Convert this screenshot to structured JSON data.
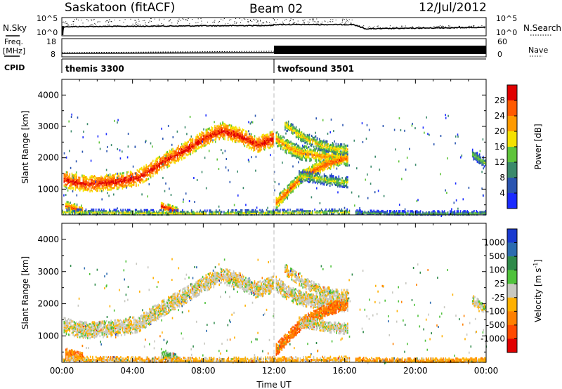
{
  "header": {
    "radar": "Saskatoon (fitACF)",
    "beam": "Beam 02",
    "date": "12/Jul/2012"
  },
  "strip_labels": {
    "nsky": "N.Sky",
    "nsky_top": "10^5",
    "nsky_bottom": "10^0",
    "nsearch": "N.Search",
    "nsearch_top": "10^5",
    "nsearch_bottom": "10^0",
    "freq": "Freq.",
    "freq_unit": "[MHz]",
    "freq_top": "18",
    "freq_bottom": "8",
    "nave": "Nave",
    "nave_top": "60",
    "nave_bottom": "0",
    "cpid": "CPID"
  },
  "cpid_modes": [
    {
      "name": "themis 3300",
      "start_hour": 0
    },
    {
      "name": "twofsound 3501",
      "start_hour": 12
    }
  ],
  "chart_data": [
    {
      "type": "heatmap",
      "name": "power",
      "xlabel": "",
      "ylabel": "Slant Range [km]",
      "xlim": [
        0,
        24
      ],
      "ylim": [
        180,
        4500
      ],
      "yticks": [
        1000,
        2000,
        3000,
        4000
      ],
      "colorbar_label": "Power [dB]",
      "colorbar_ticks": [
        "4",
        "8",
        "12",
        "16",
        "20",
        "24",
        "28"
      ],
      "colors": [
        "#1a2bff",
        "#2a55b0",
        "#3b8a6b",
        "#5fc43b",
        "#f5e100",
        "#ff9a00",
        "#ff5a00",
        "#e10000"
      ],
      "echo_bands": [
        {
          "t": [
            0.1,
            0.8,
            1.5,
            2.5,
            3.4,
            4.3,
            5.0,
            6.0,
            7.0,
            8.0,
            9.0,
            10.0,
            11.0,
            12.0
          ],
          "r": [
            1350,
            1250,
            1200,
            1250,
            1300,
            1400,
            1650,
            2000,
            2300,
            2650,
            2900,
            2750,
            2450,
            2650
          ],
          "w": 240,
          "level": 0.75
        },
        {
          "t": [
            12.1,
            12.8,
            13.5,
            14.5,
            15.5,
            16.2
          ],
          "r": [
            2650,
            2350,
            2200,
            2100,
            2050,
            2000
          ],
          "w": 220,
          "level": 0.5
        },
        {
          "t": [
            12.1,
            12.8,
            13.6,
            14.6,
            15.8,
            16.2
          ],
          "r": [
            600,
            1000,
            1450,
            1750,
            2000,
            2050
          ],
          "w": 180,
          "level": 0.62
        },
        {
          "t": [
            12.6,
            13.6,
            14.6,
            15.6,
            16.2
          ],
          "r": [
            3100,
            2700,
            2450,
            2300,
            2300
          ],
          "w": 160,
          "level": 0.4
        },
        {
          "t": [
            13.4,
            14.3,
            15.2,
            16.2
          ],
          "r": [
            1450,
            1400,
            1300,
            1250
          ],
          "w": 160,
          "level": 0.3
        },
        {
          "t": [
            5.6,
            6.1,
            6.6
          ],
          "r": [
            500,
            400,
            300
          ],
          "w": 120,
          "level": 0.7
        },
        {
          "t": [
            0.2,
            0.7,
            1.2
          ],
          "r": [
            500,
            420,
            350
          ],
          "w": 140,
          "level": 0.6
        },
        {
          "t": [
            0.0,
            4.0,
            8.0,
            12.0,
            16.3
          ],
          "r": [
            300,
            280,
            260,
            280,
            300
          ],
          "w": 90,
          "level": 0.28
        },
        {
          "t": [
            16.6,
            18.0,
            20.0,
            22.0,
            24.0
          ],
          "r": [
            290,
            270,
            260,
            260,
            270
          ],
          "w": 70,
          "level": 0.12
        },
        {
          "t": [
            23.2,
            23.6,
            24.0
          ],
          "r": [
            2150,
            2000,
            1850
          ],
          "w": 140,
          "level": 0.22
        }
      ]
    },
    {
      "type": "heatmap",
      "name": "velocity",
      "xlabel": "Time UT",
      "ylabel": "Slant Range [km]",
      "xlim": [
        0,
        24
      ],
      "ylim": [
        180,
        4500
      ],
      "xticks": [
        "00:00",
        "04:00",
        "08:00",
        "12:00",
        "16:00",
        "20:00",
        "00:00"
      ],
      "yticks": [
        1000,
        2000,
        3000,
        4000
      ],
      "colorbar_label": "Velocity [m s",
      "colorbar_label_sup": "-1",
      "colorbar_label_end": "]",
      "colorbar_ticks": [
        "1000",
        "500",
        "100",
        "25",
        "-25",
        "-100",
        "-500",
        "-1000"
      ],
      "colors": [
        "#1a3ad0",
        "#2c6cb0",
        "#2f8a4a",
        "#4fc23b",
        "#c8c8c0",
        "#ffb000",
        "#ff8000",
        "#ff4a00",
        "#e10000"
      ],
      "echo_bands": [
        {
          "t": [
            0.1,
            0.8,
            1.5,
            2.5,
            3.4,
            4.3,
            5.0,
            6.0,
            7.0,
            8.0,
            9.0,
            10.0,
            11.0,
            12.0
          ],
          "r": [
            1350,
            1250,
            1200,
            1250,
            1300,
            1400,
            1650,
            2000,
            2300,
            2650,
            2900,
            2750,
            2450,
            2650
          ],
          "w": 240,
          "level": 0.52
        },
        {
          "t": [
            12.1,
            12.8,
            13.5,
            14.5,
            15.5,
            16.2
          ],
          "r": [
            2650,
            2350,
            2200,
            2100,
            2050,
            2000
          ],
          "w": 220,
          "level": 0.52
        },
        {
          "t": [
            12.1,
            12.8,
            13.6,
            14.6,
            15.8,
            16.2
          ],
          "r": [
            600,
            1000,
            1450,
            1750,
            2000,
            2050
          ],
          "w": 180,
          "level": 0.78
        },
        {
          "t": [
            12.6,
            13.6,
            14.6,
            15.6,
            16.2
          ],
          "r": [
            3100,
            2700,
            2450,
            2300,
            2300
          ],
          "w": 160,
          "level": 0.52
        },
        {
          "t": [
            13.4,
            14.3,
            15.2,
            16.2
          ],
          "r": [
            1450,
            1400,
            1300,
            1250
          ],
          "w": 160,
          "level": 0.52
        },
        {
          "t": [
            5.6,
            6.1,
            6.6
          ],
          "r": [
            500,
            400,
            300
          ],
          "w": 120,
          "level": 0.4
        },
        {
          "t": [
            0.2,
            0.7,
            1.2
          ],
          "r": [
            500,
            420,
            350
          ],
          "w": 140,
          "level": 0.76
        },
        {
          "t": [
            0.0,
            4.0,
            8.0,
            12.0,
            16.3
          ],
          "r": [
            300,
            280,
            260,
            280,
            300
          ],
          "w": 90,
          "level": 0.62
        },
        {
          "t": [
            16.6,
            18.0,
            20.0,
            22.0,
            24.0
          ],
          "r": [
            290,
            270,
            260,
            260,
            270
          ],
          "w": 70,
          "level": 0.66
        },
        {
          "t": [
            23.2,
            23.6,
            24.0
          ],
          "r": [
            2150,
            2000,
            1850
          ],
          "w": 140,
          "level": 0.52
        }
      ]
    }
  ]
}
